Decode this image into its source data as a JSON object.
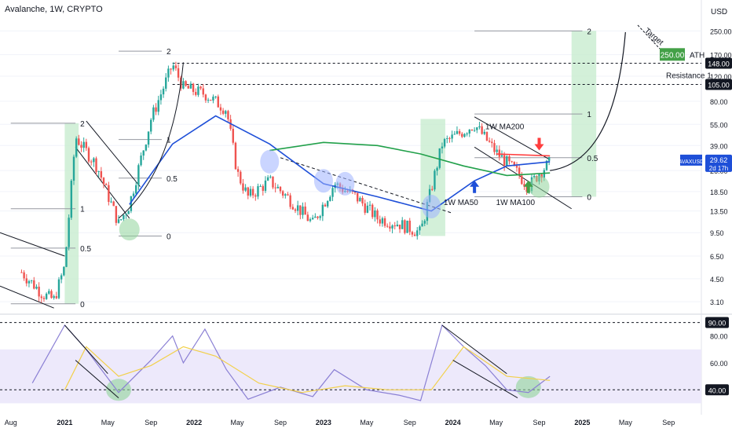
{
  "header": {
    "title": "Avalanche, 1W, CRYPTO"
  },
  "currency": "USD",
  "colors": {
    "up": "#26a69a",
    "down": "#ef5350",
    "ma50": "#1e4fd8",
    "ma100": "#21a04a",
    "ma200": "#ff3d3d",
    "rsi": "#8a7fd4",
    "rsi_ma": "#f2d04a",
    "band": "#ede9fb",
    "fib_zone": "#c8ecd0",
    "circle": "#9fb3ff",
    "accent_green": "#43a047"
  },
  "price_scale": {
    "labels": [
      "250.00",
      "170.00",
      "120.00",
      "80.00",
      "55.00",
      "39.00",
      "26.00",
      "18.50",
      "13.50",
      "9.50",
      "6.50",
      "4.50",
      "3.10"
    ],
    "values": [
      250,
      170,
      120,
      80,
      55,
      39,
      26,
      18.5,
      13.5,
      9.5,
      6.5,
      4.5,
      3.1
    ],
    "highlights": [
      {
        "label": "148.00",
        "value": 148
      },
      {
        "label": "105.00",
        "value": 105
      }
    ],
    "current": {
      "symbol": "AVAXUSD",
      "price": "29.62",
      "countdown": "2d 17h",
      "value": 29.62
    },
    "ath": {
      "label": "250.00",
      "tag": "ATH",
      "value": 250
    }
  },
  "rsi_scale": {
    "labels": [
      "80.00",
      "60.00"
    ],
    "values": [
      80,
      60
    ],
    "highlights": [
      {
        "label": "90.00",
        "value": 90
      },
      {
        "label": "40.00",
        "value": 40
      }
    ]
  },
  "time_axis": {
    "labels": [
      "Aug",
      "2021",
      "May",
      "Sep",
      "2022",
      "May",
      "Sep",
      "2023",
      "May",
      "Sep",
      "2024",
      "May",
      "Sep",
      "2025",
      "May",
      "Sep"
    ]
  },
  "annotations": {
    "resistance": "Resistance 1",
    "target": "Target",
    "ma50": "1W MA50",
    "ma100": "1W MA100",
    "ma200": "1W MA200"
  },
  "fib_levels": [
    {
      "label": "2",
      "value": 2
    },
    {
      "label": "1",
      "value": 1
    },
    {
      "label": "0.5",
      "value": 0.5
    },
    {
      "label": "0",
      "value": 0
    }
  ],
  "chart_data": {
    "type": "candlestick",
    "title": "Avalanche, 1W, CRYPTO",
    "y_scale": "log",
    "ylim": [
      2.6,
      300
    ],
    "x_range": [
      "2020-07",
      "2025-12"
    ],
    "price_path": [
      [
        "2020-09",
        5.0
      ],
      [
        "2020-11",
        3.5
      ],
      [
        "2020-12",
        3.2
      ],
      [
        "2021-01",
        5.5
      ],
      [
        "2021-02",
        45
      ],
      [
        "2021-04",
        28
      ],
      [
        "2021-06",
        11
      ],
      [
        "2021-07",
        15
      ],
      [
        "2021-09",
        60
      ],
      [
        "2021-11",
        145
      ],
      [
        "2021-12",
        100
      ],
      [
        "2022-02",
        90
      ],
      [
        "2022-04",
        70
      ],
      [
        "2022-05",
        25
      ],
      [
        "2022-06",
        17
      ],
      [
        "2022-08",
        22
      ],
      [
        "2022-10",
        16
      ],
      [
        "2022-12",
        11
      ],
      [
        "2023-02",
        21
      ],
      [
        "2023-04",
        17
      ],
      [
        "2023-06",
        12
      ],
      [
        "2023-08",
        11
      ],
      [
        "2023-10",
        9.5
      ],
      [
        "2023-12",
        40
      ],
      [
        "2024-03",
        55
      ],
      [
        "2024-05",
        35
      ],
      [
        "2024-07",
        25
      ],
      [
        "2024-08",
        20
      ],
      [
        "2024-09",
        25
      ],
      [
        "2024-10",
        29.62
      ]
    ],
    "series": [
      {
        "name": "1W MA50",
        "points": [
          [
            "2021-07",
            15
          ],
          [
            "2021-11",
            40
          ],
          [
            "2022-03",
            63
          ],
          [
            "2022-08",
            40
          ],
          [
            "2023-01",
            21
          ],
          [
            "2023-06",
            17
          ],
          [
            "2023-11",
            13.5
          ],
          [
            "2024-03",
            22
          ],
          [
            "2024-06",
            28
          ],
          [
            "2024-10",
            30
          ]
        ]
      },
      {
        "name": "1W MA100",
        "points": [
          [
            "2022-08",
            36
          ],
          [
            "2023-01",
            41
          ],
          [
            "2023-06",
            39
          ],
          [
            "2023-10",
            34
          ],
          [
            "2024-02",
            28
          ],
          [
            "2024-06",
            24
          ],
          [
            "2024-10",
            25
          ]
        ]
      },
      {
        "name": "1W MA200",
        "points": [
          [
            "2024-05",
            34
          ],
          [
            "2024-10",
            33
          ]
        ]
      }
    ],
    "rsi": {
      "ylim": [
        25,
        95
      ],
      "highlights": [
        90,
        40
      ],
      "points": [
        [
          "2020-10",
          45
        ],
        [
          "2021-01",
          88
        ],
        [
          "2021-03",
          70
        ],
        [
          "2021-06",
          38
        ],
        [
          "2021-09",
          62
        ],
        [
          "2021-11",
          80
        ],
        [
          "2021-12",
          60
        ],
        [
          "2022-02",
          85
        ],
        [
          "2022-04",
          55
        ],
        [
          "2022-06",
          33
        ],
        [
          "2022-09",
          42
        ],
        [
          "2022-12",
          35
        ],
        [
          "2023-02",
          55
        ],
        [
          "2023-05",
          40
        ],
        [
          "2023-08",
          36
        ],
        [
          "2023-10",
          32
        ],
        [
          "2023-12",
          88
        ],
        [
          "2024-02",
          72
        ],
        [
          "2024-04",
          58
        ],
        [
          "2024-06",
          40
        ],
        [
          "2024-08",
          38
        ],
        [
          "2024-10",
          50
        ]
      ],
      "ma_points": [
        [
          "2021-01",
          40
        ],
        [
          "2021-03",
          72
        ],
        [
          "2021-06",
          50
        ],
        [
          "2021-09",
          58
        ],
        [
          "2021-12",
          72
        ],
        [
          "2022-03",
          65
        ],
        [
          "2022-07",
          45
        ],
        [
          "2022-11",
          38
        ],
        [
          "2023-03",
          43
        ],
        [
          "2023-07",
          40
        ],
        [
          "2023-11",
          40
        ],
        [
          "2024-02",
          72
        ],
        [
          "2024-06",
          50
        ],
        [
          "2024-10",
          47
        ]
      ]
    }
  }
}
